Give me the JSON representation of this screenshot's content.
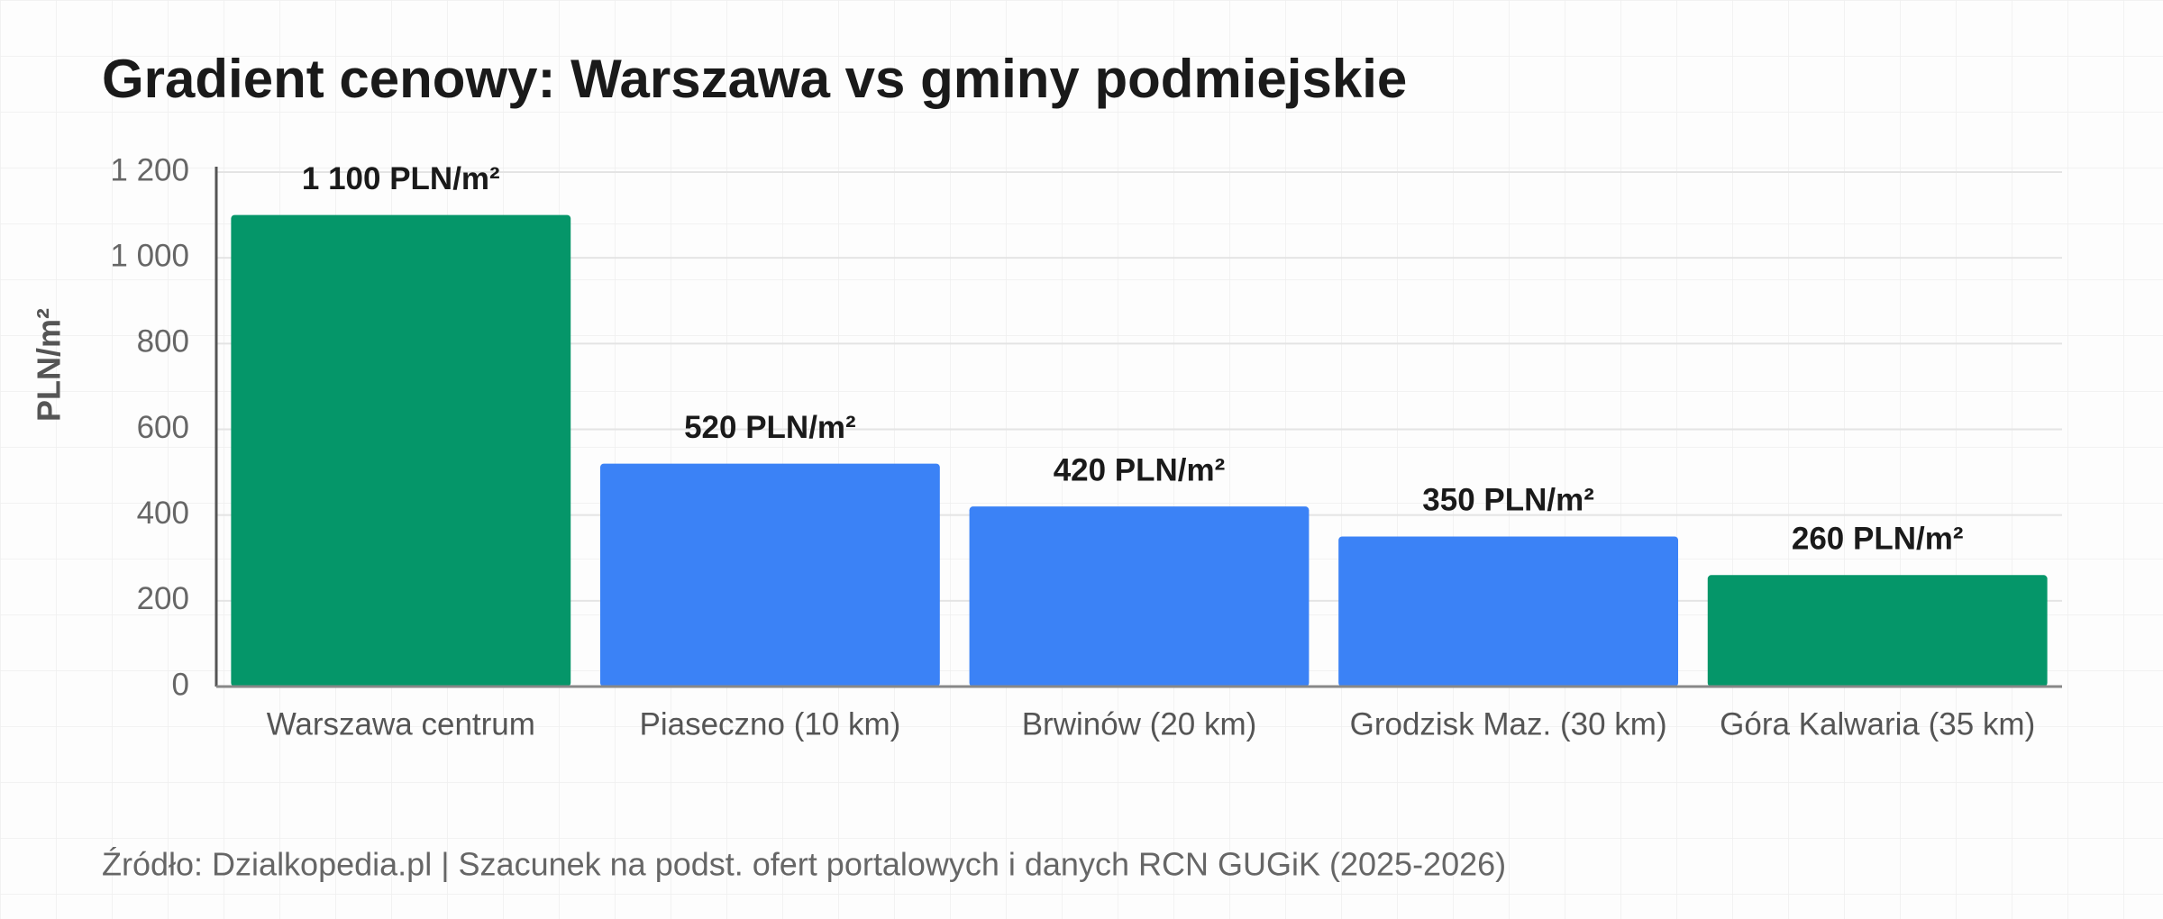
{
  "chart_data": {
    "type": "bar",
    "title": "Gradient cenowy: Warszawa vs gminy podmiejskie",
    "y_label": "PLN/m²",
    "categories": [
      "Warszawa centrum",
      "Piaseczno (10 km)",
      "Brwinów (20 km)",
      "Grodzisk Maz. (30 km)",
      "Góra Kalwaria (35 km)"
    ],
    "values": [
      1100,
      520,
      420,
      350,
      260
    ],
    "value_labels": [
      "1 100 PLN/m²",
      "520 PLN/m²",
      "420 PLN/m²",
      "350 PLN/m²",
      "260 PLN/m²"
    ],
    "colors": [
      "#059669",
      "#3b82f6",
      "#3b82f6",
      "#3b82f6",
      "#059669"
    ],
    "ylim": [
      0,
      1200
    ],
    "yticks": [
      0,
      200,
      400,
      600,
      800,
      {
        "value": 1000,
        "label": "1 000"
      },
      {
        "value": 1200,
        "label": "1 200"
      }
    ],
    "grid": true,
    "source": "Źródło: Dzialkopedia.pl | Szacunek na podst. ofert portalowych i danych RCN GUGiK (2025-2026)"
  }
}
